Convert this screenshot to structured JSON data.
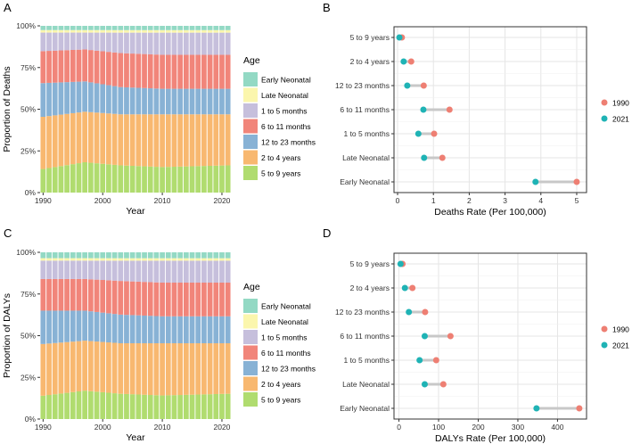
{
  "chart_data": [
    {
      "panel": "A",
      "type": "stacked-bar",
      "xlabel": "Year",
      "ylabel": "Proportion of Deaths",
      "x_ticks": [
        "1990",
        "2000",
        "2010",
        "2020"
      ],
      "y_ticks": [
        "0%",
        "25%",
        "50%",
        "75%",
        "100%"
      ],
      "legend_title": "Age",
      "legend_position": "right",
      "year_range": [
        1990,
        2021
      ],
      "stack_order": [
        "5 to 9 years",
        "2 to 4 years",
        "12 to 23 months",
        "6 to 11 months",
        "1 to 5 months",
        "Late Neonatal",
        "Early Neonatal"
      ],
      "legend_order": [
        "Early Neonatal",
        "Late Neonatal",
        "1 to 5 months",
        "6 to 11 months",
        "12 to 23 months",
        "2 to 4 years",
        "5 to 9 years"
      ],
      "series_keyframes": {
        "5 to 9 years": [
          [
            1990,
            0.14
          ],
          [
            1997,
            0.18
          ],
          [
            2003,
            0.16
          ],
          [
            2010,
            0.15
          ],
          [
            2021,
            0.16
          ]
        ],
        "2 to 4 years": [
          [
            1990,
            0.31
          ],
          [
            1997,
            0.3
          ],
          [
            2003,
            0.3
          ],
          [
            2010,
            0.31
          ],
          [
            2021,
            0.3
          ]
        ],
        "12 to 23 months": [
          [
            1990,
            0.2
          ],
          [
            1997,
            0.18
          ],
          [
            2003,
            0.16
          ],
          [
            2010,
            0.15
          ],
          [
            2021,
            0.15
          ]
        ],
        "6 to 11 months": [
          [
            1990,
            0.19
          ],
          [
            1997,
            0.19
          ],
          [
            2003,
            0.2
          ],
          [
            2010,
            0.2
          ],
          [
            2021,
            0.2
          ]
        ],
        "1 to 5 months": [
          [
            1990,
            0.11
          ],
          [
            1997,
            0.1
          ],
          [
            2003,
            0.12
          ],
          [
            2010,
            0.13
          ],
          [
            2021,
            0.13
          ]
        ],
        "Late Neonatal": [
          [
            1990,
            0.015
          ],
          [
            1997,
            0.015
          ],
          [
            2003,
            0.015
          ],
          [
            2010,
            0.015
          ],
          [
            2021,
            0.015
          ]
        ],
        "Early Neonatal": [
          [
            1990,
            0.025
          ],
          [
            1997,
            0.025
          ],
          [
            2003,
            0.025
          ],
          [
            2010,
            0.025
          ],
          [
            2021,
            0.025
          ]
        ]
      }
    },
    {
      "panel": "B",
      "type": "dumbbell",
      "xlabel": "Deaths Rate (Per 100,000)",
      "x_ticks": [
        "0",
        "1",
        "2",
        "3",
        "4",
        "5"
      ],
      "xlim": [
        -0.1,
        5.15
      ],
      "categories": [
        "5 to 9 years",
        "2 to 4 years",
        "12 to 23 months",
        "6 to 11 months",
        "1 to 5 months",
        "Late Neonatal",
        "Early Neonatal"
      ],
      "series": [
        {
          "name": "1990",
          "values": [
            0.12,
            0.38,
            0.73,
            1.45,
            1.02,
            1.25,
            5.0
          ]
        },
        {
          "name": "2021",
          "values": [
            0.05,
            0.17,
            0.27,
            0.72,
            0.58,
            0.74,
            3.85
          ]
        }
      ],
      "legend_position": "right"
    },
    {
      "panel": "C",
      "type": "stacked-bar",
      "xlabel": "Year",
      "ylabel": "Proportion of DALYs",
      "x_ticks": [
        "1990",
        "2000",
        "2010",
        "2020"
      ],
      "y_ticks": [
        "0%",
        "25%",
        "50%",
        "75%",
        "100%"
      ],
      "legend_title": "Age",
      "legend_position": "right",
      "year_range": [
        1990,
        2021
      ],
      "stack_order": [
        "5 to 9 years",
        "2 to 4 years",
        "12 to 23 months",
        "6 to 11 months",
        "1 to 5 months",
        "Late Neonatal",
        "Early Neonatal"
      ],
      "legend_order": [
        "Early Neonatal",
        "Late Neonatal",
        "1 to 5 months",
        "6 to 11 months",
        "12 to 23 months",
        "2 to 4 years",
        "5 to 9 years"
      ],
      "series_keyframes": {
        "5 to 9 years": [
          [
            1990,
            0.14
          ],
          [
            1997,
            0.17
          ],
          [
            2003,
            0.15
          ],
          [
            2010,
            0.14
          ],
          [
            2021,
            0.15
          ]
        ],
        "2 to 4 years": [
          [
            1990,
            0.31
          ],
          [
            1997,
            0.3
          ],
          [
            2003,
            0.3
          ],
          [
            2010,
            0.31
          ],
          [
            2021,
            0.3
          ]
        ],
        "12 to 23 months": [
          [
            1990,
            0.2
          ],
          [
            1997,
            0.18
          ],
          [
            2003,
            0.17
          ],
          [
            2010,
            0.16
          ],
          [
            2021,
            0.16
          ]
        ],
        "6 to 11 months": [
          [
            1990,
            0.19
          ],
          [
            1997,
            0.19
          ],
          [
            2003,
            0.2
          ],
          [
            2010,
            0.2
          ],
          [
            2021,
            0.2
          ]
        ],
        "1 to 5 months": [
          [
            1990,
            0.11
          ],
          [
            1997,
            0.11
          ],
          [
            2003,
            0.12
          ],
          [
            2010,
            0.13
          ],
          [
            2021,
            0.13
          ]
        ],
        "Late Neonatal": [
          [
            1990,
            0.015
          ],
          [
            1997,
            0.015
          ],
          [
            2003,
            0.015
          ],
          [
            2010,
            0.015
          ],
          [
            2021,
            0.015
          ]
        ],
        "Early Neonatal": [
          [
            1990,
            0.035
          ],
          [
            1997,
            0.035
          ],
          [
            2003,
            0.035
          ],
          [
            2010,
            0.035
          ],
          [
            2021,
            0.035
          ]
        ]
      }
    },
    {
      "panel": "D",
      "type": "dumbbell",
      "xlabel": "DALYs Rate (Per 100,000)",
      "x_ticks": [
        "0",
        "100",
        "200",
        "300",
        "400"
      ],
      "xlim": [
        -8,
        462
      ],
      "categories": [
        "5 to 9 years",
        "2 to 4 years",
        "12 to 23 months",
        "6 to 11 months",
        "1 to 5 months",
        "Late Neonatal",
        "Early Neonatal"
      ],
      "series": [
        {
          "name": "1990",
          "values": [
            9,
            34,
            66,
            130,
            94,
            112,
            455
          ]
        },
        {
          "name": "2021",
          "values": [
            4,
            15,
            25,
            65,
            52,
            65,
            347
          ]
        }
      ],
      "legend_position": "right"
    }
  ],
  "colors": {
    "Early Neonatal": "#93d9c4",
    "Late Neonatal": "#fbf6ad",
    "1 to 5 months": "#c6bfdc",
    "6 to 11 months": "#f1857a",
    "12 to 23 months": "#88b2d5",
    "2 to 4 years": "#f8b870",
    "5 to 9 years": "#b0dc6f",
    "1990": "#ee7f73",
    "2021": "#1fb3b5",
    "segment": "#c8c8c8",
    "grid": "#e5e5e5"
  }
}
